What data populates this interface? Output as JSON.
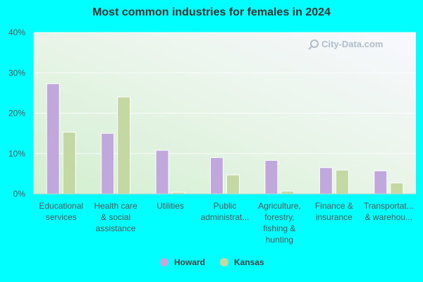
{
  "chart_data": {
    "type": "bar",
    "title": "Most common industries for females in 2024",
    "categories": [
      [
        "Educational",
        "services"
      ],
      [
        "Health care",
        "& social",
        "assistance"
      ],
      [
        "Utilities"
      ],
      [
        "Public",
        "administrat..."
      ],
      [
        "Agriculture,",
        "forestry,",
        "fishing &",
        "hunting"
      ],
      [
        "Finance &",
        "insurance"
      ],
      [
        "Transportat...",
        "& warehou..."
      ]
    ],
    "series": [
      {
        "name": "Howard",
        "color": "#c0a8dc",
        "values": [
          27.3,
          15.0,
          10.8,
          9.0,
          8.3,
          6.5,
          5.7
        ]
      },
      {
        "name": "Kansas",
        "color": "#c4d8a4",
        "values": [
          15.3,
          24.0,
          0.4,
          4.7,
          0.7,
          5.9,
          2.7
        ]
      }
    ],
    "yticks": [
      "0%",
      "10%",
      "20%",
      "30%",
      "40%"
    ],
    "ylim": [
      0,
      40
    ],
    "grid": true,
    "legend": "bottom-center",
    "watermark": "City-Data.com"
  }
}
